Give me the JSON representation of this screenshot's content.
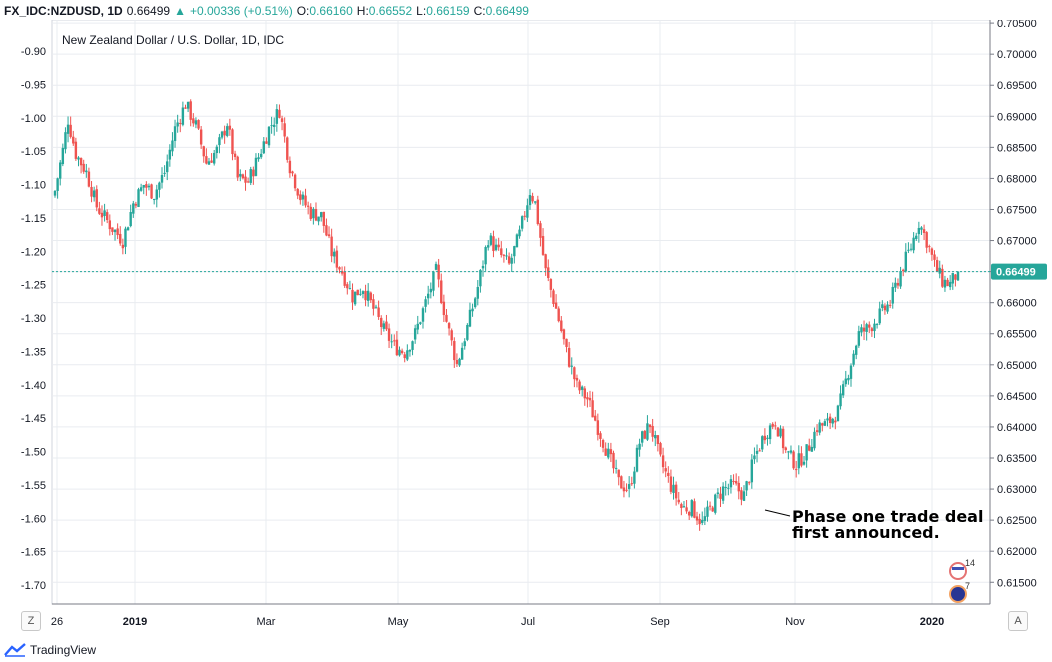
{
  "header": {
    "symbol": "FX_IDC:NZDUSD, 1D",
    "last": "0.66499",
    "change_arrow": "▲",
    "change": "+0.00336 (+0.51%)",
    "open_label": "O:",
    "open": "0.66160",
    "high_label": "H:",
    "high": "0.66552",
    "low_label": "L:",
    "low": "0.66159",
    "close_label": "C:",
    "close": "0.66499"
  },
  "legend_title": "New Zealand Dollar / U.S. Dollar, 1D, IDC",
  "annotation": {
    "line1": "Phase one trade deal",
    "line2": "first announced."
  },
  "price_tag": "0.66499",
  "footer": {
    "brand": "TradingView",
    "z_button": "Z",
    "a_button": "A"
  },
  "event_badges": {
    "us_count": "14",
    "nz_count": "7"
  },
  "colors": {
    "up": "#26a69a",
    "down": "#ef5350",
    "grid": "#e9ecf0",
    "axis_text": "#131722",
    "price_line": "#26a69a"
  },
  "chart_data": {
    "type": "candlestick",
    "title": "New Zealand Dollar / U.S. Dollar, 1D, IDC",
    "left_axis_ticks": [
      "-0.90",
      "-0.95",
      "-1.00",
      "-1.05",
      "-1.10",
      "-1.15",
      "-1.20",
      "-1.25",
      "-1.30",
      "-1.35",
      "-1.40",
      "-1.45",
      "-1.50",
      "-1.55",
      "-1.60",
      "-1.65",
      "-1.70"
    ],
    "right_axis_ticks": [
      "0.70500",
      "0.70000",
      "0.69500",
      "0.69000",
      "0.68500",
      "0.68000",
      "0.67500",
      "0.67000",
      "0.66500",
      "0.66000",
      "0.65500",
      "0.65000",
      "0.64500",
      "0.64000",
      "0.63500",
      "0.63000",
      "0.62500",
      "0.62000",
      "0.61500"
    ],
    "x_ticks": [
      "26",
      "2019",
      "Mar",
      "May",
      "Jul",
      "Sep",
      "Nov",
      "2020"
    ],
    "ylim": [
      0.6115,
      0.7055
    ],
    "current_close": 0.66499,
    "anchors": [
      [
        0,
        0.678
      ],
      [
        3,
        0.6845
      ],
      [
        5,
        0.6895
      ],
      [
        8,
        0.684
      ],
      [
        12,
        0.681
      ],
      [
        16,
        0.6755
      ],
      [
        22,
        0.672
      ],
      [
        26,
        0.67
      ],
      [
        30,
        0.676
      ],
      [
        34,
        0.679
      ],
      [
        38,
        0.6775
      ],
      [
        42,
        0.681
      ],
      [
        46,
        0.688
      ],
      [
        50,
        0.692
      ],
      [
        54,
        0.6885
      ],
      [
        58,
        0.6825
      ],
      [
        62,
        0.6845
      ],
      [
        66,
        0.689
      ],
      [
        70,
        0.68
      ],
      [
        74,
        0.6795
      ],
      [
        78,
        0.6835
      ],
      [
        82,
        0.688
      ],
      [
        86,
        0.691
      ],
      [
        90,
        0.682
      ],
      [
        94,
        0.677
      ],
      [
        98,
        0.6745
      ],
      [
        102,
        0.674
      ],
      [
        106,
        0.668
      ],
      [
        110,
        0.665
      ],
      [
        114,
        0.661
      ],
      [
        118,
        0.6625
      ],
      [
        122,
        0.659
      ],
      [
        126,
        0.6555
      ],
      [
        130,
        0.653
      ],
      [
        134,
        0.652
      ],
      [
        138,
        0.655
      ],
      [
        142,
        0.66
      ],
      [
        146,
        0.665
      ],
      [
        150,
        0.657
      ],
      [
        154,
        0.65
      ],
      [
        158,
        0.656
      ],
      [
        162,
        0.6625
      ],
      [
        166,
        0.6705
      ],
      [
        170,
        0.668
      ],
      [
        174,
        0.666
      ],
      [
        178,
        0.671
      ],
      [
        182,
        0.678
      ],
      [
        184,
        0.676
      ],
      [
        188,
        0.665
      ],
      [
        192,
        0.659
      ],
      [
        196,
        0.652
      ],
      [
        200,
        0.6465
      ],
      [
        204,
        0.6445
      ],
      [
        208,
        0.64
      ],
      [
        212,
        0.6355
      ],
      [
        216,
        0.631
      ],
      [
        220,
        0.63
      ],
      [
        224,
        0.6375
      ],
      [
        228,
        0.6405
      ],
      [
        232,
        0.6345
      ],
      [
        236,
        0.6305
      ],
      [
        240,
        0.627
      ],
      [
        244,
        0.627
      ],
      [
        248,
        0.6245
      ],
      [
        252,
        0.6275
      ],
      [
        256,
        0.63
      ],
      [
        260,
        0.6305
      ],
      [
        264,
        0.629
      ],
      [
        268,
        0.635
      ],
      [
        272,
        0.639
      ],
      [
        276,
        0.641
      ],
      [
        280,
        0.636
      ],
      [
        284,
        0.634
      ],
      [
        288,
        0.636
      ],
      [
        292,
        0.64
      ],
      [
        296,
        0.6405
      ],
      [
        300,
        0.6425
      ],
      [
        304,
        0.649
      ],
      [
        308,
        0.655
      ],
      [
        312,
        0.656
      ],
      [
        316,
        0.658
      ],
      [
        320,
        0.66
      ],
      [
        324,
        0.665
      ],
      [
        328,
        0.669
      ],
      [
        331,
        0.673
      ],
      [
        334,
        0.67
      ],
      [
        337,
        0.666
      ],
      [
        340,
        0.6635
      ],
      [
        343,
        0.663
      ],
      [
        346,
        0.665
      ]
    ]
  }
}
